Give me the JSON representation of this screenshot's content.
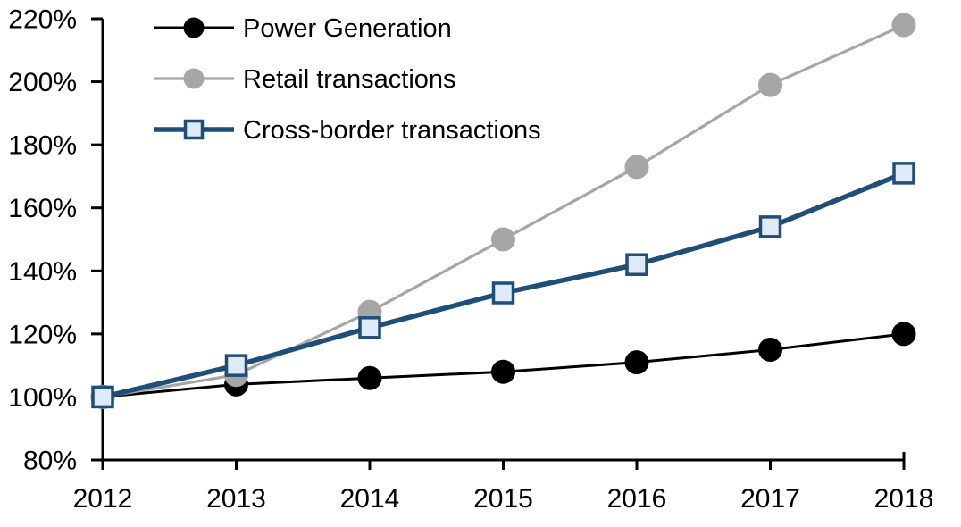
{
  "chart_data": {
    "type": "line",
    "title": "",
    "xlabel": "",
    "ylabel": "",
    "x": [
      2012,
      2013,
      2014,
      2015,
      2016,
      2017,
      2018
    ],
    "xtick_labels": [
      "2012",
      "2013",
      "2014",
      "2015",
      "2016",
      "2017",
      "2018"
    ],
    "ylim": [
      80,
      220
    ],
    "ytick_step": 20,
    "ytick_labels": [
      "80%",
      "100%",
      "120%",
      "140%",
      "160%",
      "180%",
      "200%",
      "220%"
    ],
    "grid": false,
    "legend_position": "top-left",
    "axis_color": "#000000",
    "background_color": "#ffffff",
    "series": [
      {
        "name": "Power Generation",
        "values": [
          100,
          104,
          106,
          108,
          111,
          115,
          120
        ],
        "line_color": "#000000",
        "line_width": 3,
        "marker": "circle",
        "marker_fill": "#000000",
        "marker_stroke": "#000000"
      },
      {
        "name": "Retail transactions",
        "values": [
          100,
          107,
          127,
          150,
          173,
          199,
          218
        ],
        "line_color": "#A6A6A6",
        "line_width": 3.2,
        "marker": "circle",
        "marker_fill": "#A6A6A6",
        "marker_stroke": "#A6A6A6"
      },
      {
        "name": "Cross-border transactions",
        "values": [
          100,
          110,
          122,
          133,
          142,
          154,
          171
        ],
        "line_color": "#1F4E79",
        "line_width": 5.5,
        "marker": "square",
        "marker_fill": "#DEEAF6",
        "marker_stroke": "#1F4E79"
      }
    ]
  }
}
